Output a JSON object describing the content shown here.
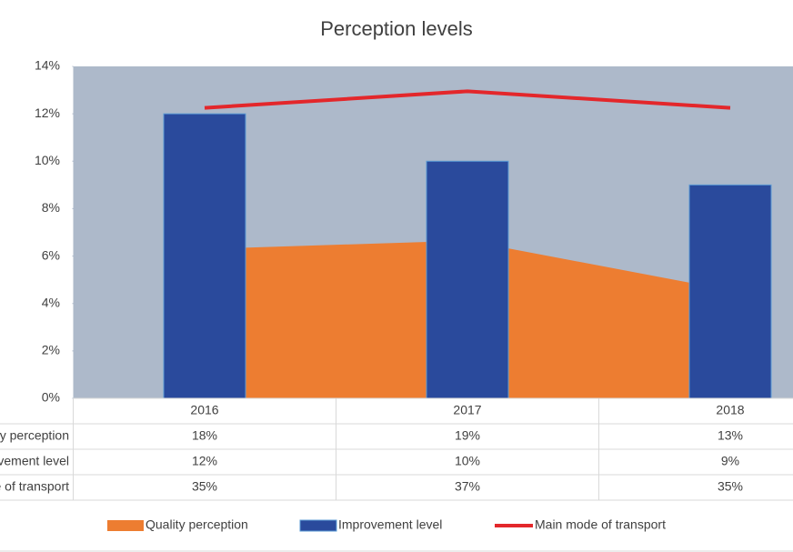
{
  "chart_data": {
    "type": "combo",
    "title": "Perception levels",
    "categories": [
      "2016",
      "2017",
      "2018"
    ],
    "series": [
      {
        "name": "Quality perception",
        "type": "area",
        "axis": "y2",
        "color": "#ed7d31",
        "values": [
          18,
          19,
          13
        ],
        "value_labels": [
          "18%",
          "19%",
          "13%"
        ]
      },
      {
        "name": "Improvement level",
        "type": "bar",
        "color": "#2a4a9c",
        "values": [
          12,
          10,
          9
        ],
        "value_labels": [
          "12%",
          "10%",
          "9%"
        ]
      },
      {
        "name": "Main mode of transport",
        "type": "line",
        "axis": "y2",
        "color": "#e3272b",
        "values": [
          35,
          37,
          35
        ],
        "value_labels": [
          "35%",
          "37%",
          "35%"
        ]
      }
    ],
    "ylim": [
      0,
      14
    ],
    "yticks": [
      {
        "value": 0,
        "label": "0%"
      },
      {
        "value": 2,
        "label": "2%"
      },
      {
        "value": 4,
        "label": "4%"
      },
      {
        "value": 6,
        "label": "6%"
      },
      {
        "value": 8,
        "label": "8%"
      },
      {
        "value": 10,
        "label": "10%"
      },
      {
        "value": 12,
        "label": "12%"
      },
      {
        "value": 14,
        "label": "14%"
      }
    ],
    "y2lim": [
      0,
      40
    ],
    "legend": "bottom"
  }
}
